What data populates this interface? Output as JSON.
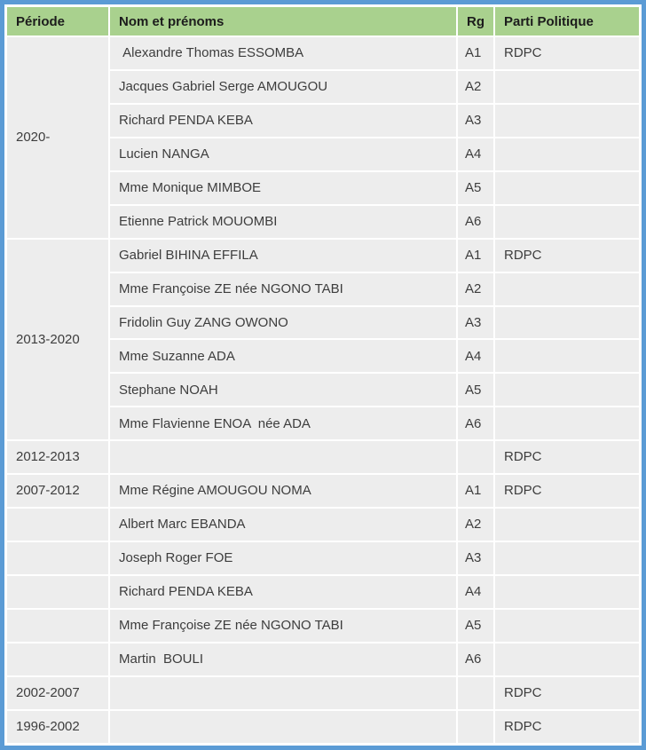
{
  "colors": {
    "header_green": "#a9d18e",
    "border_blue": "#5b9bd5",
    "cell_gray": "#ededed"
  },
  "table": {
    "headers": [
      "Période",
      "Nom et prénoms",
      "Rg",
      "Parti Politique"
    ],
    "rows": [
      {
        "period": "2020-",
        "period_rowspan": 6,
        "name": " Alexandre Thomas ESSOMBA",
        "rg": "A1",
        "parti": "RDPC"
      },
      {
        "name": "Jacques Gabriel Serge AMOUGOU",
        "rg": "A2",
        "parti": ""
      },
      {
        "name": "Richard PENDA KEBA",
        "rg": "A3",
        "parti": ""
      },
      {
        "name": "Lucien NANGA",
        "rg": "A4",
        "parti": ""
      },
      {
        "name": "Mme Monique MIMBOE",
        "rg": "A5",
        "parti": ""
      },
      {
        "name": "Etienne Patrick MOUOMBI",
        "rg": "A6",
        "parti": ""
      },
      {
        "period": "2013-2020",
        "period_rowspan": 6,
        "name": "Gabriel BIHINA EFFILA",
        "rg": "A1",
        "parti": "RDPC"
      },
      {
        "name": "Mme Françoise ZE née NGONO TABI",
        "rg": "A2",
        "parti": ""
      },
      {
        "name": "Fridolin Guy ZANG OWONO",
        "rg": "A3",
        "parti": ""
      },
      {
        "name": "Mme Suzanne ADA",
        "rg": "A4",
        "parti": ""
      },
      {
        "name": "Stephane NOAH",
        "rg": "A5",
        "parti": ""
      },
      {
        "name": "Mme Flavienne ENOA  née ADA",
        "rg": "A6",
        "parti": ""
      },
      {
        "period": "2012-2013",
        "name": "",
        "rg": "",
        "parti": "RDPC"
      },
      {
        "period": "2007-2012",
        "name": "Mme Régine AMOUGOU NOMA",
        "rg": "A1",
        "parti": "RDPC"
      },
      {
        "period": "",
        "name": "Albert Marc EBANDA",
        "rg": "A2",
        "parti": ""
      },
      {
        "period": "",
        "name": "Joseph Roger FOE",
        "rg": "A3",
        "parti": ""
      },
      {
        "period": "",
        "name": "Richard PENDA KEBA",
        "rg": "A4",
        "parti": ""
      },
      {
        "period": "",
        "name": "Mme Françoise ZE née NGONO TABI",
        "rg": "A5",
        "parti": ""
      },
      {
        "period": "",
        "name": "Martin  BOULI",
        "rg": "A6",
        "parti": ""
      },
      {
        "period": "2002-2007",
        "name": "",
        "rg": "",
        "parti": "RDPC"
      },
      {
        "period": "1996-2002",
        "name": "",
        "rg": "",
        "parti": "RDPC"
      }
    ]
  }
}
